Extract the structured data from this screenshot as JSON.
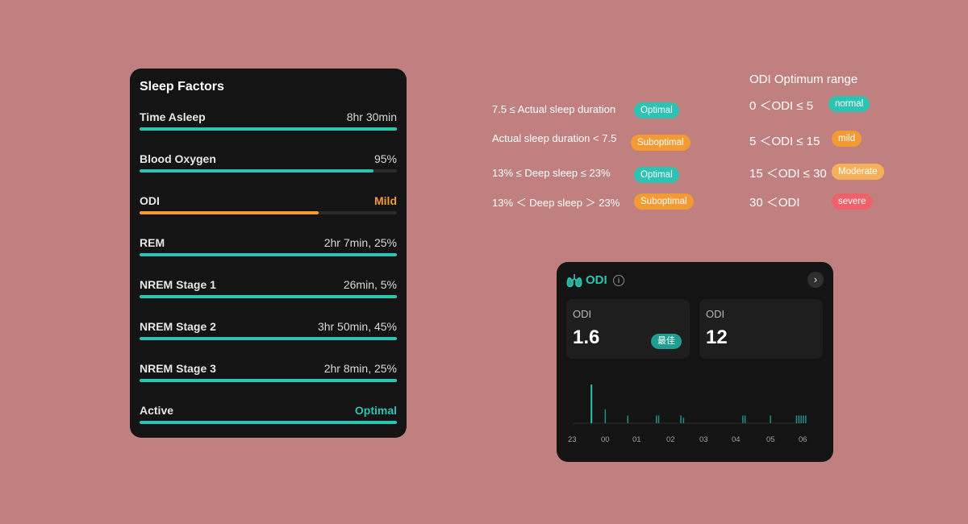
{
  "sleep_factors": {
    "title": "Sleep Factors",
    "rows": [
      {
        "name": "Time Asleep",
        "value": "8hr 30min",
        "progress": 1.0,
        "color": "#2cc3b2",
        "value_color": "#d8d8d8"
      },
      {
        "name": "Blood Oxygen",
        "value": "95%",
        "progress": 0.91,
        "color": "#2cc3b2",
        "value_color": "#d8d8d8"
      },
      {
        "name": "ODI",
        "value": "Mild",
        "progress": 0.695,
        "color": "#f39a32",
        "value_color": "#f39a32"
      },
      {
        "name": "REM",
        "value": "2hr 7min, 25%",
        "progress": 1.0,
        "color": "#2cc3b2",
        "value_color": "#d8d8d8"
      },
      {
        "name": "NREM Stage 1",
        "value": "26min, 5%",
        "progress": 1.0,
        "color": "#2cc3b2",
        "value_color": "#d8d8d8"
      },
      {
        "name": "NREM Stage 2",
        "value": "3hr 50min, 45%",
        "progress": 1.0,
        "color": "#2cc3b2",
        "value_color": "#d8d8d8"
      },
      {
        "name": "NREM Stage 3",
        "value": "2hr 8min, 25%",
        "progress": 1.0,
        "color": "#2cc3b2",
        "value_color": "#d8d8d8"
      },
      {
        "name": "Active",
        "value": "Optimal",
        "progress": 1.0,
        "color": "#2cc3b2",
        "value_color": "#2cc3b2"
      }
    ]
  },
  "sleep_legend": [
    {
      "text": "7.5 ≤ Actual sleep duration",
      "badge": "Optimal",
      "badge_color": "#2cc3b2"
    },
    {
      "text": "Actual sleep duration < 7.5",
      "badge": "Suboptimal",
      "badge_color": "#f39a32"
    },
    {
      "text": "13% ≤ Deep sleep ≤  23%",
      "badge": "Optimal",
      "badge_color": "#2cc3b2"
    },
    {
      "text": "13% ＜ Deep sleep ＞ 23%",
      "badge": "Suboptimal",
      "badge_color": "#f39a32"
    }
  ],
  "odi_legend": {
    "title": "ODI Optimum range",
    "items": [
      {
        "text": "0 ＜ODI ≤  5",
        "badge": "normal",
        "badge_color": "#2cc3b2"
      },
      {
        "text": "5 ＜ODI ≤ 15",
        "badge": "mild",
        "badge_color": "#f39a32"
      },
      {
        "text": "15 ＜ODI ≤ 30",
        "badge": "Moderate",
        "badge_color": "#f7b05a"
      },
      {
        "text": "30 ＜ODI",
        "badge": "severe",
        "badge_color": "#f0626a"
      }
    ]
  },
  "odi_card": {
    "title": "ODI",
    "icons": {
      "title": "lungs-icon",
      "info": "info-icon",
      "nav": "chevron-right-icon"
    },
    "nav_glyph": "›",
    "info_glyph": "i",
    "metrics": [
      {
        "label": "ODI",
        "value": "1.6",
        "badge": "最佳"
      },
      {
        "label": "ODI",
        "value": "12",
        "badge": ""
      }
    ],
    "accent": "#2cc3b2"
  },
  "chart_data": {
    "type": "bar",
    "x_ticks": [
      "23",
      "00",
      "01",
      "02",
      "03",
      "04",
      "05",
      "06"
    ],
    "events": [
      {
        "t": 23.55,
        "v": 1.0
      },
      {
        "t": 23.98,
        "v": 0.36
      },
      {
        "t": 0.67,
        "v": 0.2
      },
      {
        "t": 1.55,
        "v": 0.2
      },
      {
        "t": 1.62,
        "v": 0.2
      },
      {
        "t": 2.3,
        "v": 0.2
      },
      {
        "t": 2.38,
        "v": 0.14
      },
      {
        "t": 4.2,
        "v": 0.2
      },
      {
        "t": 4.27,
        "v": 0.2
      },
      {
        "t": 5.05,
        "v": 0.2
      },
      {
        "t": 5.85,
        "v": 0.2
      },
      {
        "t": 5.92,
        "v": 0.2
      },
      {
        "t": 5.99,
        "v": 0.2
      },
      {
        "t": 6.06,
        "v": 0.2
      },
      {
        "t": 6.13,
        "v": 0.2
      }
    ],
    "ylim": [
      0,
      1
    ],
    "xlim": [
      23,
      30.5
    ],
    "color": "#2cc3b2",
    "grid": false
  }
}
